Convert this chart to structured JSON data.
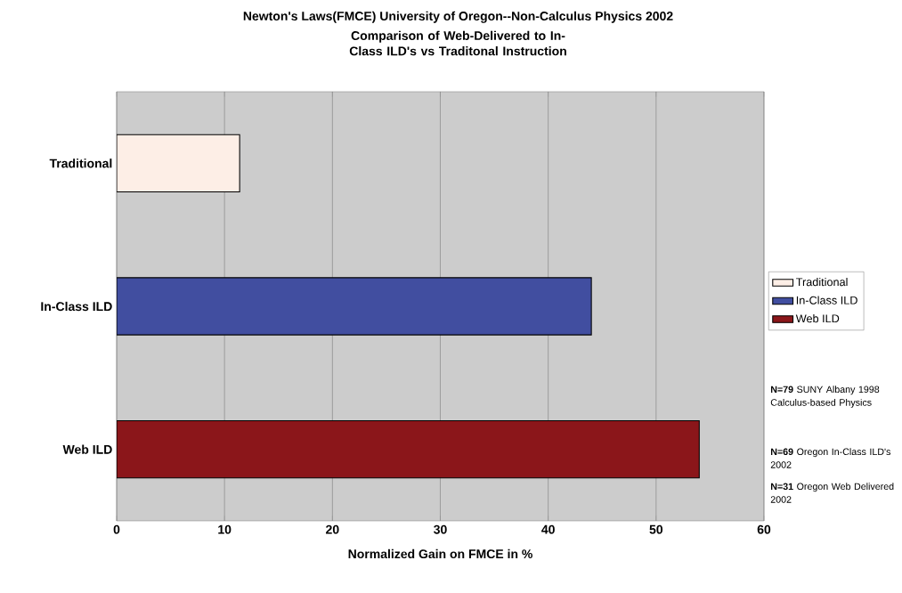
{
  "chart_data": {
    "type": "bar",
    "orientation": "horizontal",
    "title": "Newton's Laws(FMCE) University of Oregon--Non-Calculus Physics 2002",
    "subtitle": "Comparison of Web-Delivered to In-Class ILD's vs Traditonal Instruction",
    "xlabel": "Normalized Gain on FMCE in %",
    "categories": [
      "Traditional",
      "In-Class ILD",
      "Web ILD"
    ],
    "series": [
      {
        "name": "Traditional",
        "color": "#fdeee6",
        "values": [
          11.4,
          null,
          null
        ]
      },
      {
        "name": "In-Class ILD",
        "color": "#414ea0",
        "values": [
          null,
          44,
          null
        ]
      },
      {
        "name": "Web ILD",
        "color": "#8b161a",
        "values": [
          null,
          null,
          54
        ]
      }
    ],
    "xlim": [
      0,
      60
    ],
    "xticks": [
      0,
      10,
      20,
      30,
      40,
      50,
      60
    ],
    "grid": "x",
    "legend": "right",
    "annotations": [
      "**N=79** SUNY Albany 1998 Calculus-based Physics",
      "**N=69** Oregon In-Class ILD's 2002",
      "**N=31** Oregon Web Delivered 2002"
    ]
  }
}
